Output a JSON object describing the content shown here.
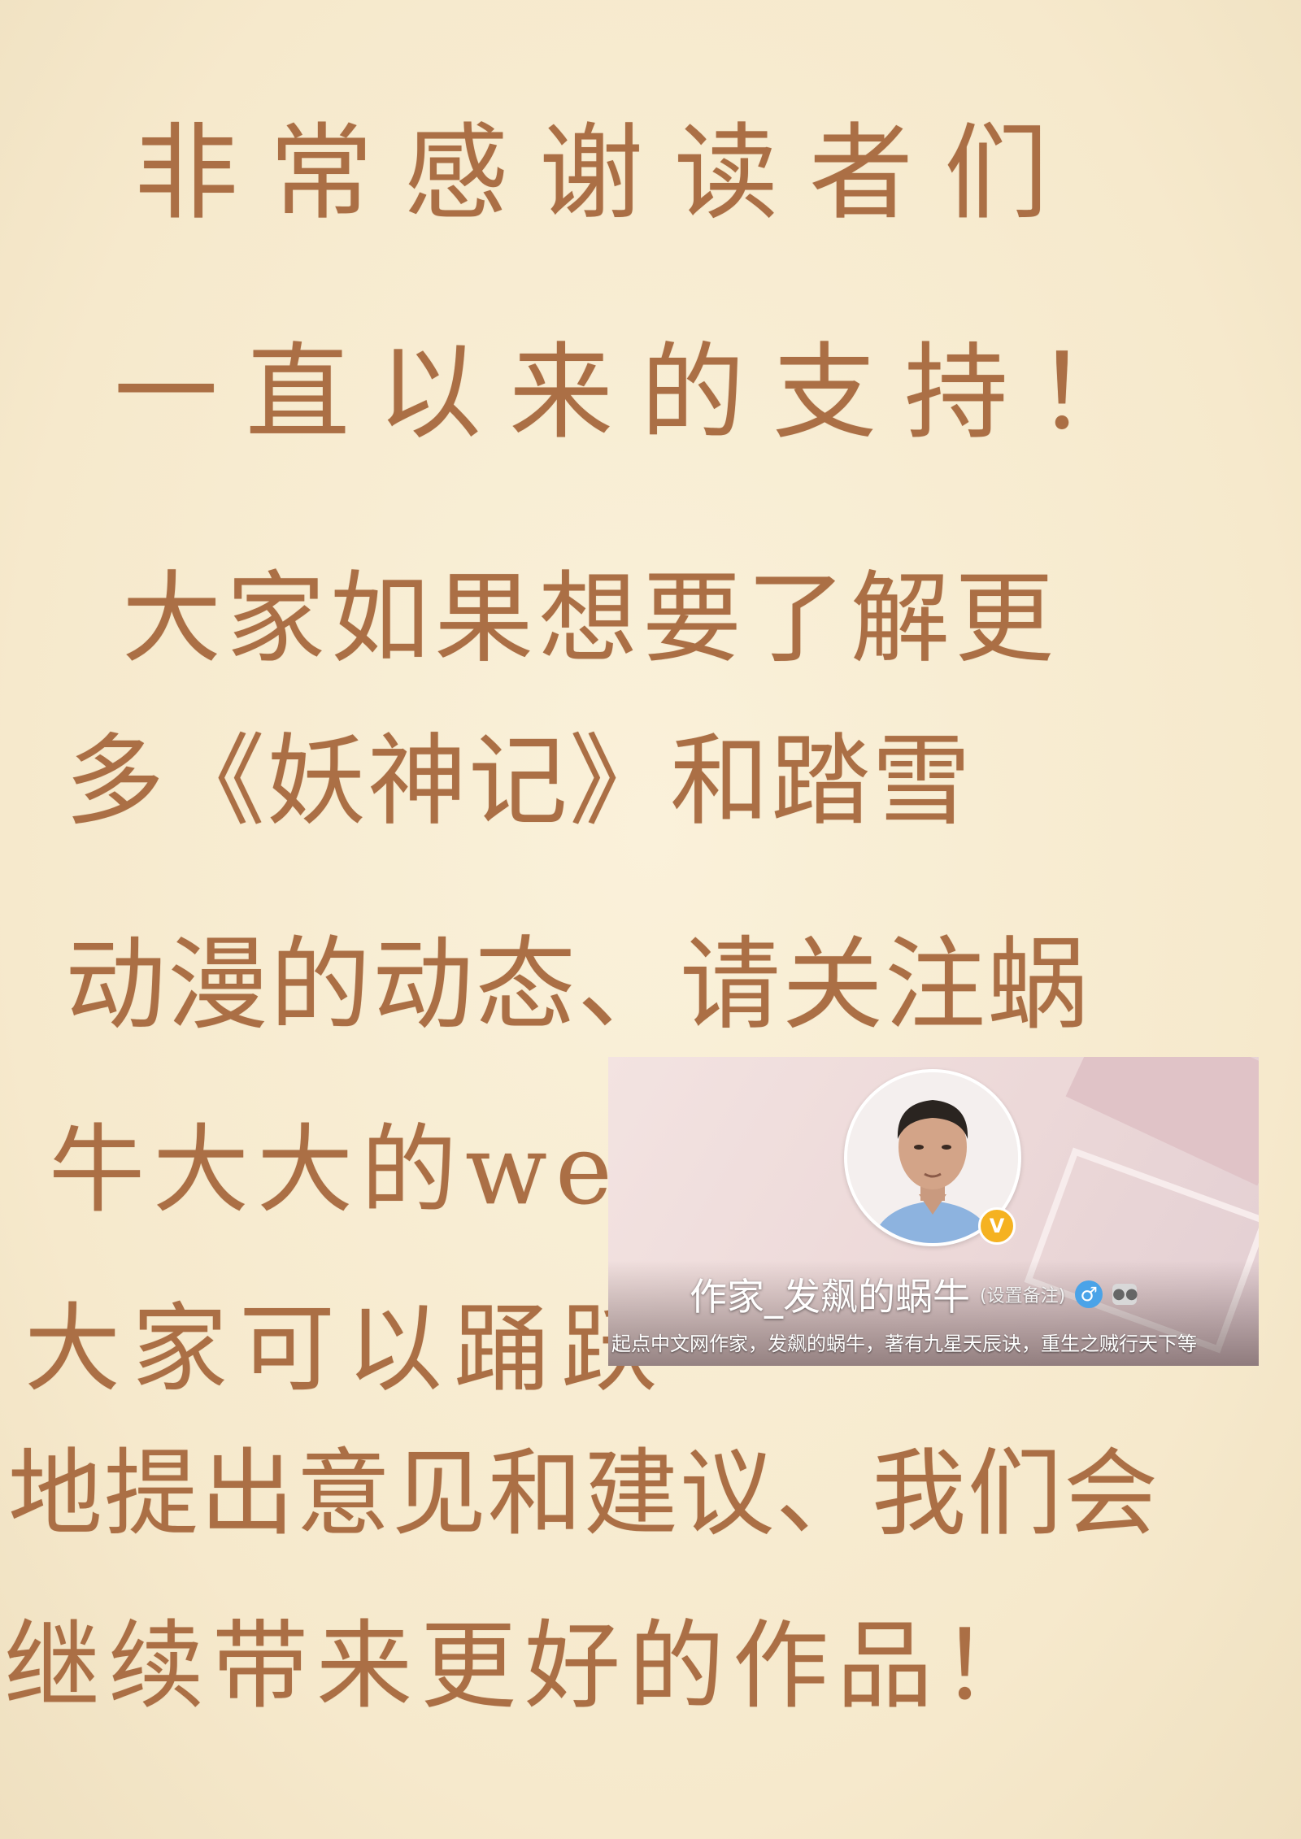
{
  "letter": {
    "lines": [
      "非常感谢读者们",
      "一直以来的支持！",
      "大家如果想要了解更",
      "多《妖神记》和踏雪",
      "动漫的动态、请关注蜗",
      "牛大大的weibo→",
      "大家可以踊跃",
      "地提出意见和建议、我们会",
      "继续带来更好的作品！"
    ]
  },
  "profile_card": {
    "name": "作家_发飙的蜗牛",
    "remark": "(设置备注)",
    "bio": "起点中文网作家，发飙的蜗牛，著有九星天辰诀，重生之贼行天下等",
    "verified_badge": "V",
    "gender_symbol": "♂",
    "icons": [
      "verified-badge-icon",
      "male-gender-icon",
      "robot-icon"
    ],
    "accent_colors": {
      "verified": "#f5b221",
      "gender": "#4aa3e8",
      "ink": "#ab6f45"
    }
  }
}
